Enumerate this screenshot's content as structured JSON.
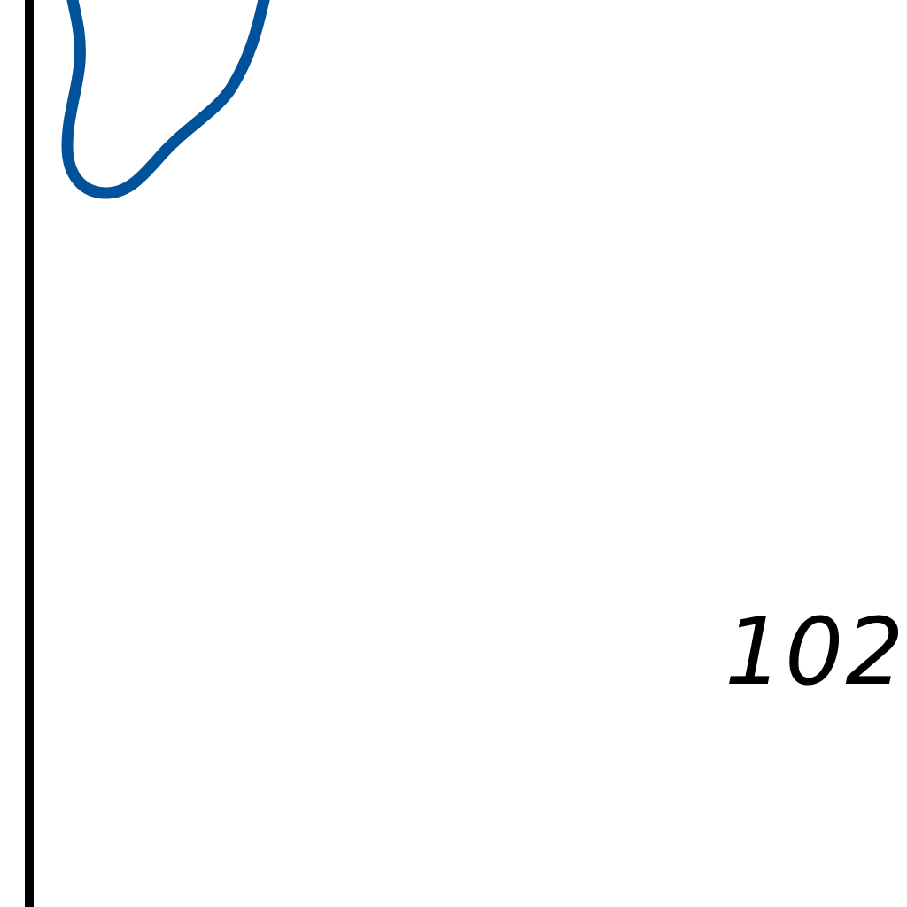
{
  "figure": {
    "reference_numeral": "102",
    "colors": {
      "background": "#ffffff",
      "frame_line": "#000000",
      "blob_outline": "#00529b",
      "text": "#000000"
    },
    "elements": [
      {
        "name": "vertical-frame-line",
        "kind": "line"
      },
      {
        "name": "blob-outline",
        "kind": "closed-curve"
      },
      {
        "name": "reference-numeral-102",
        "kind": "text"
      }
    ]
  }
}
